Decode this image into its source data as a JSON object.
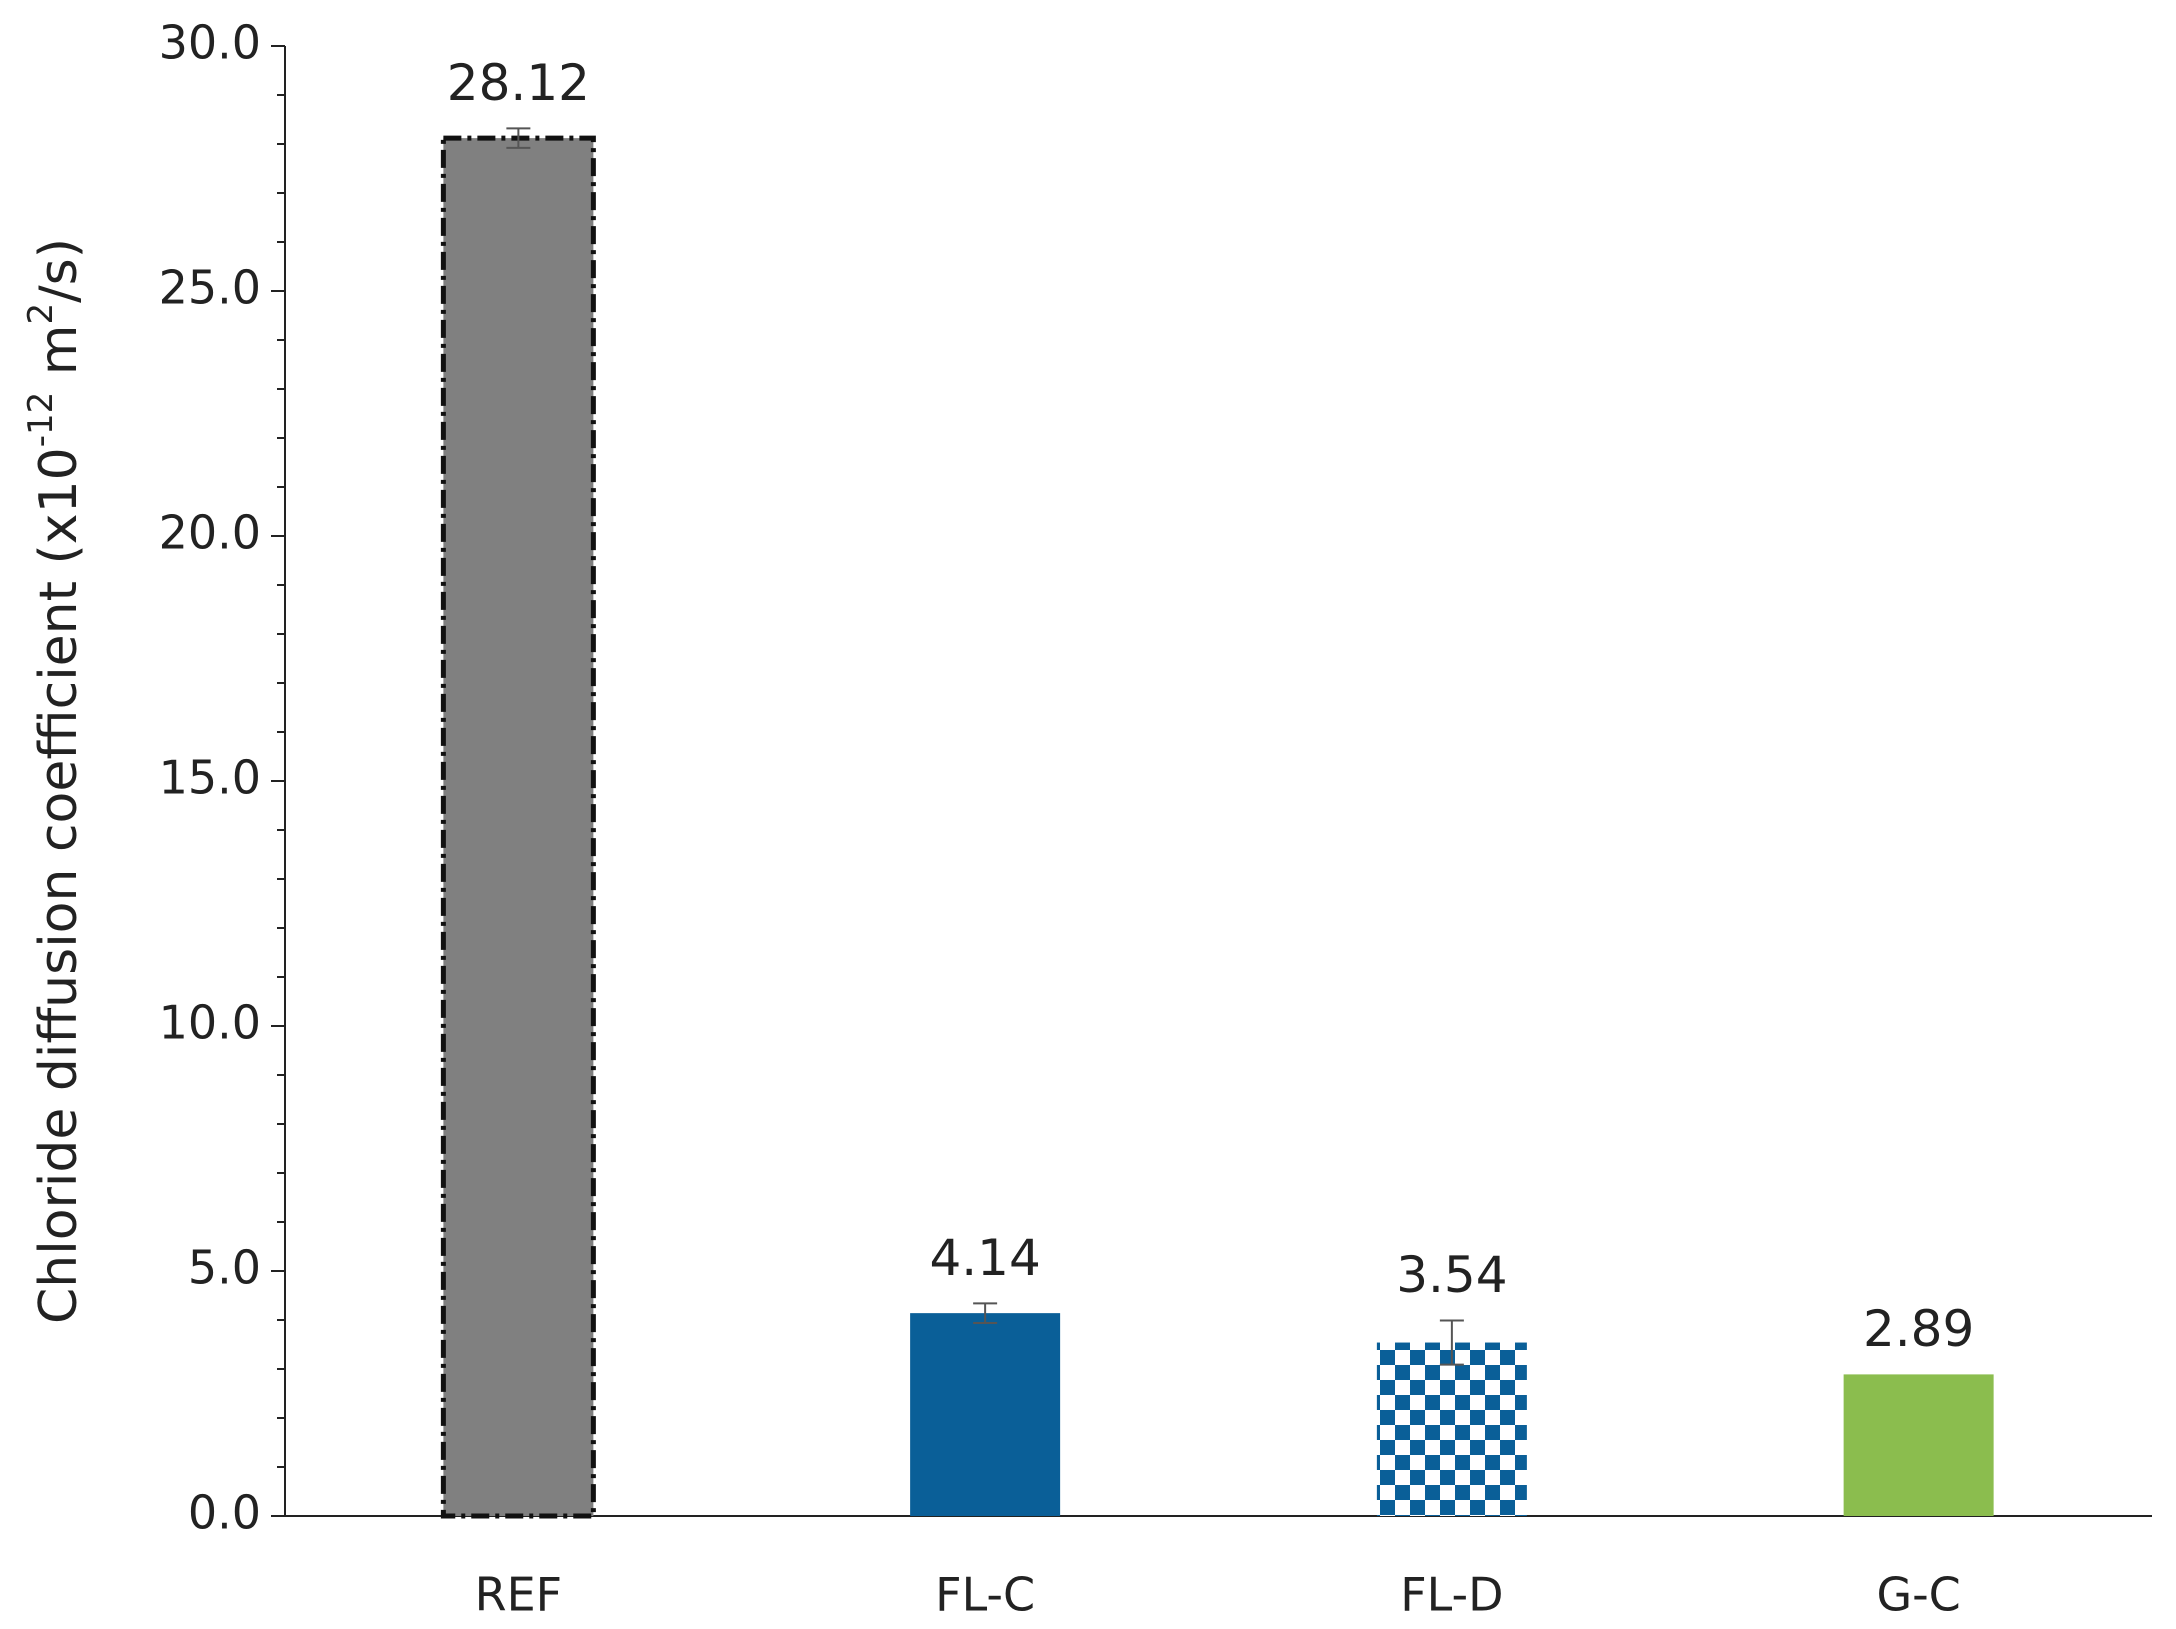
{
  "chart_data": {
    "type": "bar",
    "y_label": {
      "parts": [
        "Chloride diffusion coefficient  (x10",
        "-12",
        " m",
        "2",
        "/s)"
      ],
      "superscript": [
        false,
        true,
        false,
        true,
        false
      ]
    },
    "categories": [
      "REF",
      "FL-C",
      "FL-D",
      "G-C"
    ],
    "values": [
      28.12,
      4.14,
      3.54,
      2.89
    ],
    "errors": [
      0.2,
      0.2,
      0.45,
      null
    ],
    "colors": [
      "#808080",
      "#0a5f98",
      "#0a5f98",
      "#8bbd4e"
    ],
    "patterns": [
      "dash-dot-outline",
      "solid",
      "checkerboard",
      "solid"
    ],
    "ylim": [
      0,
      30
    ],
    "yticks": [
      {
        "value": 0,
        "label": "0.0"
      },
      {
        "value": 5,
        "label": "5.0"
      },
      {
        "value": 10,
        "label": "10.0"
      },
      {
        "value": 15,
        "label": "15.0"
      },
      {
        "value": 20,
        "label": "20.0"
      },
      {
        "value": 25,
        "label": "25.0"
      },
      {
        "value": 30,
        "label": "30.0"
      }
    ],
    "yminorticks": [
      1,
      2,
      3,
      4,
      6,
      7,
      8,
      9,
      11,
      12,
      13,
      14,
      16,
      17,
      18,
      19,
      21,
      22,
      23,
      24,
      26,
      27,
      28,
      29
    ]
  }
}
